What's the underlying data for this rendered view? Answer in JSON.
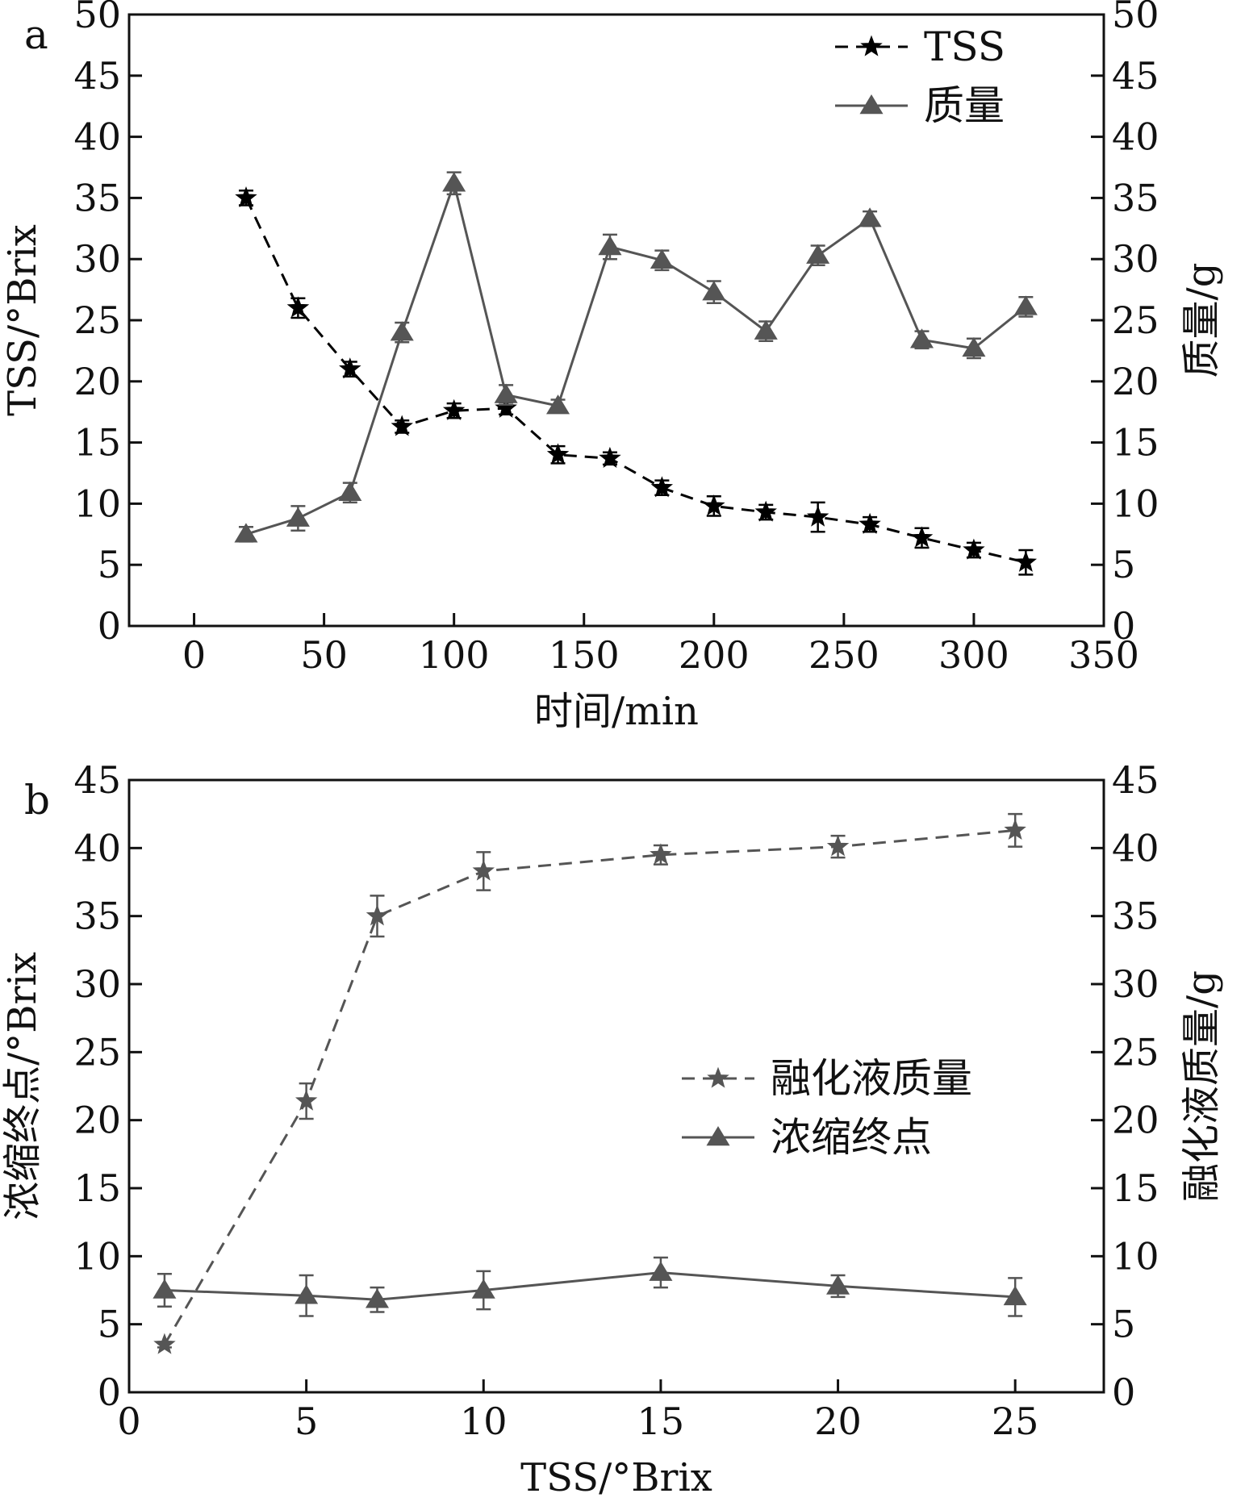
{
  "chart_data": [
    {
      "type": "line",
      "panel_label": "a",
      "xlabel": "时间/min",
      "ylabel": "TSS/°Brix",
      "y2label": "质量/g",
      "xlim": [
        -25,
        350
      ],
      "ylim": [
        0,
        50
      ],
      "y2lim": [
        0,
        50
      ],
      "xticks": [
        0,
        50,
        100,
        150,
        200,
        250,
        300,
        350
      ],
      "yticks": [
        0,
        5,
        10,
        15,
        20,
        25,
        30,
        35,
        40,
        45,
        50
      ],
      "grid": false,
      "legend_position": "top-right",
      "series": [
        {
          "name": "TSS",
          "axis": "left",
          "marker": "star",
          "line_style": "dashed",
          "color": "#000000",
          "x": [
            20,
            40,
            60,
            80,
            100,
            120,
            140,
            160,
            180,
            200,
            220,
            240,
            260,
            280,
            300,
            320
          ],
          "values": [
            35.0,
            26.0,
            21.0,
            16.3,
            17.6,
            17.8,
            14.0,
            13.7,
            11.3,
            9.8,
            9.3,
            8.9,
            8.3,
            7.2,
            6.2,
            5.2
          ],
          "errors": [
            0.6,
            0.8,
            0.6,
            0.5,
            0.6,
            0.5,
            0.7,
            0.5,
            0.6,
            0.8,
            0.6,
            1.2,
            0.6,
            0.8,
            0.6,
            1.0
          ]
        },
        {
          "name": "质量",
          "axis": "right",
          "marker": "triangle",
          "line_style": "solid",
          "color": "#555555",
          "x": [
            20,
            40,
            60,
            80,
            100,
            120,
            140,
            160,
            180,
            200,
            220,
            240,
            260,
            280,
            300,
            320
          ],
          "values": [
            7.5,
            8.8,
            10.9,
            24.0,
            36.2,
            18.9,
            18.0,
            31.0,
            29.9,
            27.3,
            24.1,
            30.3,
            33.3,
            23.4,
            22.7,
            26.1
          ],
          "errors": [
            0.6,
            1.0,
            0.8,
            0.8,
            0.9,
            0.8,
            0.5,
            1.0,
            0.8,
            0.9,
            0.8,
            0.8,
            0.6,
            0.7,
            0.8,
            0.8
          ]
        }
      ]
    },
    {
      "type": "line",
      "panel_label": "b",
      "xlabel": "TSS/°Brix",
      "ylabel": "浓缩终点/°Brix",
      "y2label": "融化液质量/g",
      "xlim": [
        0,
        27.5
      ],
      "ylim": [
        0,
        45
      ],
      "y2lim": [
        0,
        45
      ],
      "xticks": [
        0,
        5,
        10,
        15,
        20,
        25
      ],
      "yticks": [
        0,
        5,
        10,
        15,
        20,
        25,
        30,
        35,
        40,
        45
      ],
      "grid": false,
      "legend_position": "center-right",
      "series": [
        {
          "name": "融化液质量",
          "axis": "right",
          "marker": "star",
          "line_style": "dashed",
          "color": "#555555",
          "x": [
            1,
            5,
            7,
            10,
            15,
            20,
            25
          ],
          "values": [
            3.5,
            21.4,
            35.0,
            38.3,
            39.5,
            40.1,
            41.3
          ],
          "errors": [
            0.2,
            1.3,
            1.5,
            1.4,
            0.7,
            0.8,
            1.2
          ]
        },
        {
          "name": "浓缩终点",
          "axis": "left",
          "marker": "triangle",
          "line_style": "solid",
          "color": "#555555",
          "x": [
            1,
            5,
            7,
            10,
            15,
            20,
            25
          ],
          "values": [
            7.5,
            7.1,
            6.8,
            7.5,
            8.8,
            7.8,
            7.0
          ],
          "errors": [
            1.2,
            1.5,
            0.9,
            1.4,
            1.1,
            0.8,
            1.4
          ]
        }
      ]
    }
  ]
}
